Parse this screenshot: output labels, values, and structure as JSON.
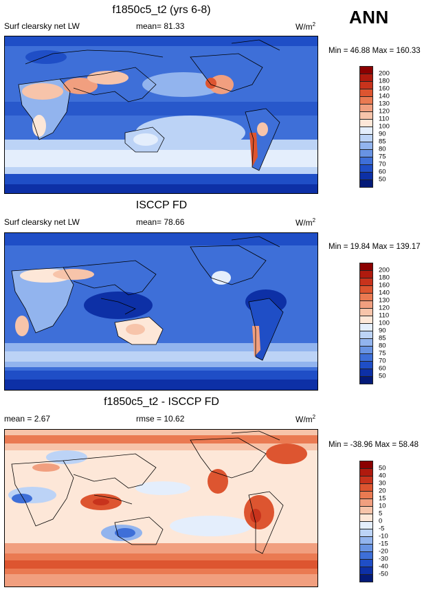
{
  "season": "ANN",
  "panels": [
    {
      "title": "f1850c5_t2 (yrs 6-8)",
      "left_label": "Surf clearsky net LW",
      "center_label": "mean=  81.33",
      "units_base": "W/m",
      "units_exp": "2",
      "minmax": "Min =  46.88 Max = 160.33",
      "colorbar": {
        "labels": [
          "200",
          "180",
          "160",
          "140",
          "130",
          "120",
          "110",
          "100",
          "90",
          "85",
          "80",
          "75",
          "70",
          "60",
          "50"
        ],
        "colors": [
          "#8b0000",
          "#b01a0e",
          "#c8331c",
          "#dd5530",
          "#ea7a52",
          "#f19f7f",
          "#f7c4aa",
          "#fde7d8",
          "#e4eefc",
          "#bcd3f6",
          "#92b4ee",
          "#6893e3",
          "#3e6fd8",
          "#1f4ec6",
          "#0d30a6",
          "#041a78"
        ]
      }
    },
    {
      "title": "ISCCP FD",
      "left_label": "Surf clearsky net LW",
      "center_label": "mean=  78.66",
      "units_base": "W/m",
      "units_exp": "2",
      "minmax": "Min =  19.84 Max = 139.17",
      "colorbar": {
        "labels": [
          "200",
          "180",
          "160",
          "140",
          "130",
          "120",
          "110",
          "100",
          "90",
          "85",
          "80",
          "75",
          "70",
          "60",
          "50"
        ],
        "colors": [
          "#8b0000",
          "#b01a0e",
          "#c8331c",
          "#dd5530",
          "#ea7a52",
          "#f19f7f",
          "#f7c4aa",
          "#fde7d8",
          "#e4eefc",
          "#bcd3f6",
          "#92b4ee",
          "#6893e3",
          "#3e6fd8",
          "#1f4ec6",
          "#0d30a6",
          "#041a78"
        ]
      }
    },
    {
      "title": "f1850c5_t2 - ISCCP FD",
      "left_label": "mean =   2.67",
      "center_label": "rmse =  10.62",
      "units_base": "W/m",
      "units_exp": "2",
      "minmax": "Min = -38.96 Max =  58.48",
      "colorbar": {
        "labels": [
          "50",
          "40",
          "30",
          "20",
          "15",
          "10",
          "5",
          "0",
          "-5",
          "-10",
          "-15",
          "-20",
          "-30",
          "-40",
          "-50"
        ],
        "colors": [
          "#8b0000",
          "#b01a0e",
          "#c8331c",
          "#dd5530",
          "#ea7a52",
          "#f19f7f",
          "#f7c4aa",
          "#fde7d8",
          "#e4eefc",
          "#bcd3f6",
          "#92b4ee",
          "#6893e3",
          "#3e6fd8",
          "#1f4ec6",
          "#0d30a6",
          "#041a78"
        ]
      }
    }
  ]
}
